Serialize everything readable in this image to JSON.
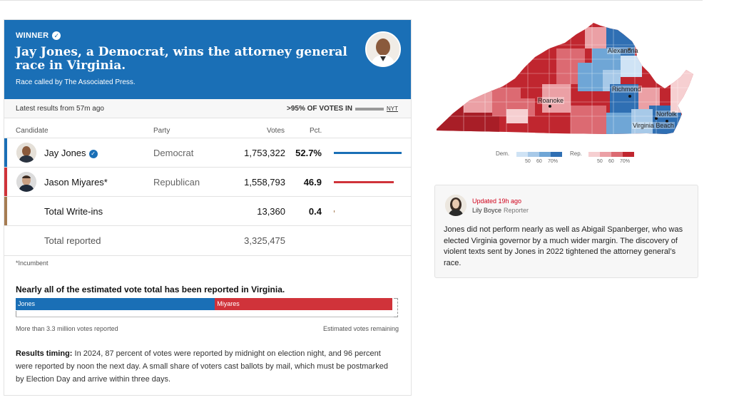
{
  "banner": {
    "winner_label": "WINNER",
    "headline": "Jay Jones, a Democrat, wins the attorney general race in Virginia.",
    "called_by": "Race called by The Associated Press."
  },
  "meta": {
    "latest": "Latest results from 57m ago",
    "pct_in": ">95% OF VOTES IN",
    "source": "NYT"
  },
  "table": {
    "headers": {
      "candidate": "Candidate",
      "party": "Party",
      "votes": "Votes",
      "pct": "Pct."
    },
    "rows": [
      {
        "name": "Jay Jones",
        "party": "Democrat",
        "votes": "1,753,322",
        "pct": "52.7%",
        "share": 0.527,
        "color": "#1a6fb6"
      },
      {
        "name": "Jason Miyares*",
        "party": "Republican",
        "votes": "1,558,793",
        "pct": "46.9",
        "share": 0.469,
        "color": "#d0333a"
      },
      {
        "name": "Total Write-ins",
        "party": "",
        "votes": "13,360",
        "pct": "0.4",
        "share": 0.004,
        "color": "#a67c52"
      }
    ],
    "total": {
      "label": "Total reported",
      "votes": "3,325,475"
    }
  },
  "footnote": "*Incumbent",
  "progress": {
    "title": "Nearly all of the estimated vote total has been reported in Virginia.",
    "dem_label": "Jones",
    "rep_label": "Miyares",
    "dem_share": 0.527,
    "rep_share": 0.469,
    "left_caption": "More than 3.3 million votes reported",
    "right_caption": "Estimated votes remaining"
  },
  "timing": {
    "label": "Results timing:",
    "text": " In 2024, 87 percent of votes were reported by midnight on election night, and 96 percent were reported by noon the next day. A small share of voters cast ballots by mail, which must be postmarked by Election Day and arrive within three days."
  },
  "map": {
    "cities": [
      "Alexandria",
      "Richmond",
      "Roanoke",
      "Norfolk",
      "Virginia Beach"
    ],
    "legend": {
      "dem_label": "Dem.",
      "rep_label": "Rep.",
      "ticks": [
        "50",
        "60",
        "70%"
      ],
      "dem_colors": [
        "#cfe3f5",
        "#a7c9e8",
        "#6fa6d6",
        "#2f6fb3"
      ],
      "rep_colors": [
        "#f6cfd1",
        "#eba0a5",
        "#dc6a72",
        "#c0262f"
      ]
    }
  },
  "reporter": {
    "updated": "Updated 19h ago",
    "name": "Lily Boyce",
    "role": "Reporter",
    "text": "Jones did not perform nearly as well as Abigail Spanberger, who was elected Virginia governor by a much wider margin. The discovery of violent texts sent by Jones in 2022 tightened the attorney general’s race."
  }
}
